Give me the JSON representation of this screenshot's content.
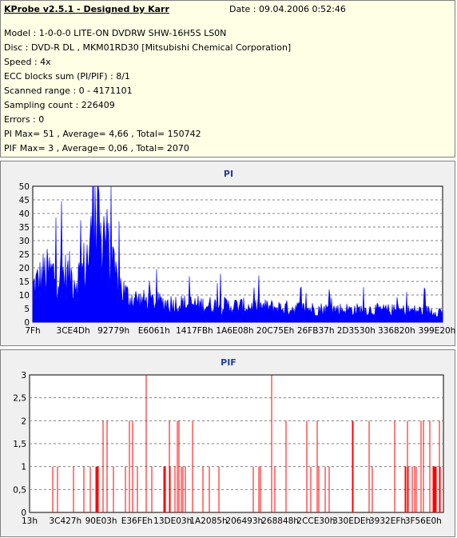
{
  "header": {
    "title": "KProbe v2.5.1 - Designed by Karr",
    "date": "Date : 09.04.2006 0:52:46",
    "lines": [
      "Model : 1-0-0-0 LITE-ON DVDRW SHW-16H5S  LS0N",
      "Disc : DVD-R DL , MKM01RD30 [Mitsubishi Chemical Corporation]",
      "Speed : 4x",
      "ECC blocks sum (PI/PIF) : 8/1",
      "Scanned range : 0 - 4171101",
      "Sampling count : 226409",
      "Errors : 0",
      "PI Max= 51 , Average= 4,66 , Total= 150742",
      "PIF Max= 3 , Average= 0,06 , Total= 2070"
    ]
  },
  "chart_data": [
    {
      "type": "area",
      "title": "PI",
      "color": "#0000ff",
      "ylim": [
        0,
        50
      ],
      "yticks": [
        "0",
        "5",
        "10",
        "15",
        "20",
        "25",
        "30",
        "35",
        "40",
        "45",
        "50"
      ],
      "xticks": [
        "7Fh",
        "3CE4Dh",
        "92779h",
        "E6061h",
        "1417FBh",
        "1A6E08h",
        "20C75Eh",
        "26FB37h",
        "2D3530h",
        "336820h",
        "399E20h"
      ],
      "xlim": [
        0,
        4171101
      ],
      "max": 51,
      "average": 4.66,
      "profile": [
        [
          0,
          16
        ],
        [
          3,
          22
        ],
        [
          6,
          22
        ],
        [
          9,
          21
        ],
        [
          11,
          20
        ],
        [
          12,
          22
        ],
        [
          14,
          34
        ],
        [
          15,
          45
        ],
        [
          16,
          48
        ],
        [
          18,
          36
        ],
        [
          20,
          20
        ],
        [
          23,
          12
        ],
        [
          26,
          10
        ],
        [
          30,
          9
        ],
        [
          40,
          8
        ],
        [
          55,
          7
        ],
        [
          70,
          6
        ],
        [
          100,
          5
        ]
      ]
    },
    {
      "type": "bar",
      "title": "PIF",
      "color": "#ff0000",
      "ylim": [
        0,
        3
      ],
      "yticks": [
        "0",
        "0,5",
        "1",
        "1,5",
        "2",
        "2,5",
        "3"
      ],
      "xticks": [
        "13h",
        "3C427h",
        "90E03h",
        "E36FEh",
        "13DE03h",
        "1A2085h",
        "206493h",
        "268848h",
        "2CCE30h",
        "330EDEh",
        "3932EFh",
        "3F56E0h"
      ],
      "xlim": [
        0,
        4171101
      ],
      "max": 3,
      "average": 0.06,
      "peaks_pct": [
        28.2,
        58.5
      ]
    }
  ]
}
